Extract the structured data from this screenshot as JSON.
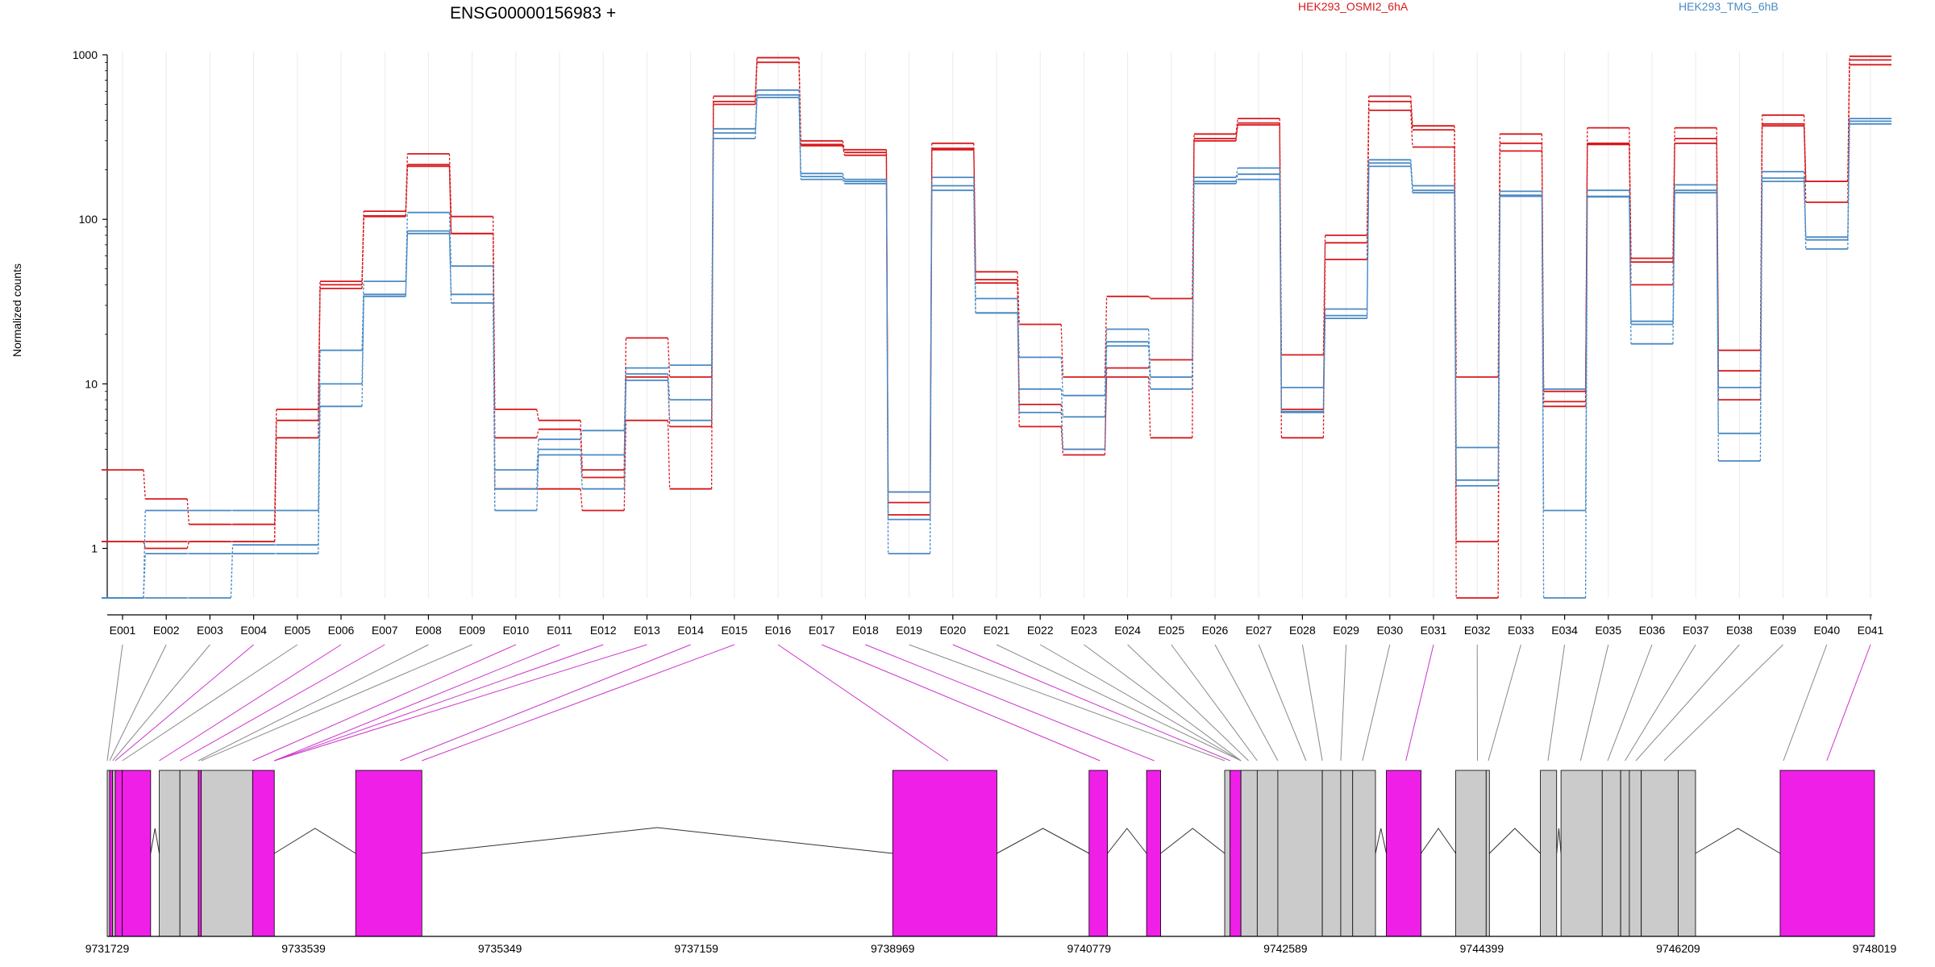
{
  "chart_data": {
    "type": "line",
    "title": "ENSG00000156983 +",
    "ylabel": "Normalized counts",
    "xlabel": "",
    "y_scale": "log",
    "ylim": [
      0.5,
      1000
    ],
    "y_ticks": [
      {
        "value": 1,
        "label": "1"
      },
      {
        "value": 10,
        "label": "10"
      },
      {
        "value": 100,
        "label": "100"
      },
      {
        "value": 1000,
        "label": "1000"
      }
    ],
    "categories": [
      "E001",
      "E002",
      "E003",
      "E004",
      "E005",
      "E006",
      "E007",
      "E008",
      "E009",
      "E010",
      "E011",
      "E012",
      "E013",
      "E014",
      "E015",
      "E016",
      "E017",
      "E018",
      "E019",
      "E020",
      "E021",
      "E022",
      "E023",
      "E024",
      "E025",
      "E026",
      "E027",
      "E028",
      "E029",
      "E030",
      "E031",
      "E032",
      "E033",
      "E034",
      "E035",
      "E036",
      "E037",
      "E038",
      "E039",
      "E040",
      "E041"
    ],
    "series": [
      {
        "name": "HEK293_OSMI2_6hA",
        "group": "HEK293_OSMI2_6hA",
        "color": "#d7191c",
        "values": [
          3,
          2,
          1.4,
          1.4,
          7,
          42,
          112,
          250,
          104,
          7,
          6,
          3,
          19,
          11,
          560,
          960,
          300,
          265,
          2.2,
          290,
          48,
          23,
          11,
          34,
          33,
          330,
          410,
          15,
          80,
          560,
          370,
          11,
          330,
          9,
          360,
          58,
          360,
          16,
          430,
          170,
          980
        ]
      },
      {
        "name": "",
        "group": "HEK293_OSMI2_6hA",
        "color": "#d7191c",
        "values": [
          1.1,
          1.1,
          1.1,
          1.1,
          6,
          38,
          105,
          215,
          82,
          4.7,
          5.3,
          2.7,
          11,
          5.5,
          520,
          960,
          285,
          255,
          1.9,
          265,
          41,
          5.5,
          3.7,
          12.5,
          14,
          310,
          385,
          7,
          57,
          460,
          275,
          0.5,
          290,
          7.3,
          290,
          40,
          290,
          8,
          380,
          127,
          930
        ]
      },
      {
        "name": "",
        "group": "HEK293_OSMI2_6hA",
        "color": "#d7191c",
        "values": [
          1.1,
          1,
          1.1,
          1.1,
          4.7,
          40,
          104,
          210,
          82,
          2.3,
          2.3,
          1.7,
          6,
          2.3,
          500,
          900,
          280,
          245,
          1.6,
          270,
          43,
          7.5,
          4,
          11,
          4.7,
          300,
          375,
          4.7,
          72,
          520,
          350,
          1.1,
          260,
          7.8,
          285,
          55,
          310,
          12,
          370,
          170,
          870
        ]
      },
      {
        "name": "HEK293_TMG_6hB",
        "group": "HEK293_TMG_6hB",
        "color": "#4a8ac4",
        "values": [
          0.5,
          1.7,
          1.7,
          1.7,
          1.7,
          16,
          42,
          110,
          52,
          3,
          4.6,
          5.2,
          12.5,
          13,
          355,
          610,
          190,
          175,
          2.2,
          180,
          33,
          14.5,
          8.5,
          21.5,
          11,
          180,
          205,
          9.5,
          28.5,
          230,
          160,
          4.1,
          148,
          9.3,
          150,
          24,
          162,
          9.5,
          195,
          78,
          410
        ]
      },
      {
        "name": "",
        "group": "HEK293_TMG_6hB",
        "color": "#4a8ac4",
        "values": [
          0.5,
          0.5,
          0.5,
          1.05,
          1.05,
          10,
          35,
          85,
          35,
          2.3,
          4,
          3.7,
          11.5,
          8,
          335,
          570,
          182,
          170,
          1.5,
          160,
          27,
          9.3,
          6.3,
          18,
          11,
          170,
          188,
          6.7,
          25,
          220,
          150,
          2.6,
          140,
          1.7,
          138,
          23,
          150,
          5,
          178,
          75,
          395
        ]
      },
      {
        "name": "",
        "group": "HEK293_TMG_6hB",
        "color": "#4a8ac4",
        "values": [
          0.5,
          0.93,
          0.93,
          0.93,
          0.93,
          7.3,
          34,
          82,
          31,
          1.7,
          3.7,
          2.3,
          10.5,
          6,
          310,
          550,
          175,
          165,
          0.93,
          150,
          27,
          6.7,
          4,
          17,
          9.3,
          165,
          175,
          6.8,
          26,
          210,
          145,
          2.4,
          138,
          0.5,
          137,
          17.5,
          145,
          3.4,
          170,
          66,
          380
        ]
      }
    ],
    "legend": {
      "placement": "top-right",
      "entries": [
        "HEK293_OSMI2_6hA",
        "HEK293_TMG_6hB"
      ]
    },
    "grid": true,
    "gene_model": {
      "coordinate_start": 9731729,
      "coordinate_end": 9748019,
      "axis_ticks": [
        "9731729",
        "9733539",
        "9735349",
        "9737159",
        "9738969",
        "9740779",
        "9742589",
        "9744399",
        "9746209",
        "9748019"
      ],
      "exons": [
        {
          "start": 9731729,
          "end": 9731751,
          "type": "ns"
        },
        {
          "start": 9731751,
          "end": 9731779,
          "type": "s"
        },
        {
          "start": 9731779,
          "end": 9731803,
          "type": "ns"
        },
        {
          "start": 9731803,
          "end": 9731868,
          "type": "s"
        },
        {
          "start": 9731868,
          "end": 9732129,
          "type": "s"
        },
        {
          "start": 9732209,
          "end": 9732399,
          "type": "ns"
        },
        {
          "start": 9732399,
          "end": 9732569,
          "type": "ns"
        },
        {
          "start": 9732569,
          "end": 9732596,
          "type": "s"
        },
        {
          "start": 9732596,
          "end": 9733069,
          "type": "ns"
        },
        {
          "start": 9733069,
          "end": 9733269,
          "type": "s"
        },
        {
          "start": 9734019,
          "end": 9734629,
          "type": "s"
        },
        {
          "start": 9738969,
          "end": 9739929,
          "type": "s"
        },
        {
          "start": 9740779,
          "end": 9740949,
          "type": "s"
        },
        {
          "start": 9741309,
          "end": 9741439,
          "type": "s"
        },
        {
          "start": 9742029,
          "end": 9742079,
          "type": "ns"
        },
        {
          "start": 9742079,
          "end": 9742179,
          "type": "s"
        },
        {
          "start": 9742179,
          "end": 9742329,
          "type": "ns"
        },
        {
          "start": 9742329,
          "end": 9742519,
          "type": "ns"
        },
        {
          "start": 9742519,
          "end": 9742929,
          "type": "ns"
        },
        {
          "start": 9742929,
          "end": 9743099,
          "type": "ns"
        },
        {
          "start": 9743099,
          "end": 9743209,
          "type": "ns"
        },
        {
          "start": 9743209,
          "end": 9743419,
          "type": "ns"
        },
        {
          "start": 9743519,
          "end": 9743839,
          "type": "s"
        },
        {
          "start": 9744159,
          "end": 9744439,
          "type": "ns"
        },
        {
          "start": 9744439,
          "end": 9744469,
          "type": "ns"
        },
        {
          "start": 9744939,
          "end": 9745089,
          "type": "ns"
        },
        {
          "start": 9745129,
          "end": 9745509,
          "type": "ns"
        },
        {
          "start": 9745509,
          "end": 9745679,
          "type": "ns"
        },
        {
          "start": 9745679,
          "end": 9745759,
          "type": "ns"
        },
        {
          "start": 9745759,
          "end": 9745869,
          "type": "ns"
        },
        {
          "start": 9745869,
          "end": 9746209,
          "type": "ns"
        },
        {
          "start": 9746209,
          "end": 9746369,
          "type": "ns"
        },
        {
          "start": 9747149,
          "end": 9748019,
          "type": "s"
        }
      ],
      "connectors": [
        {
          "exon": "E001",
          "coord": 9731729,
          "color": "#888888"
        },
        {
          "exon": "E002",
          "coord": 9731751,
          "color": "#888888"
        },
        {
          "exon": "E003",
          "coord": 9731779,
          "color": "#888888"
        },
        {
          "exon": "E004",
          "coord": 9731803,
          "color": "#cc33cc"
        },
        {
          "exon": "E005",
          "coord": 9731868,
          "color": "#888888"
        },
        {
          "exon": "E006",
          "coord": 9732209,
          "color": "#cc33cc"
        },
        {
          "exon": "E007",
          "coord": 9732399,
          "color": "#cc33cc"
        },
        {
          "exon": "E008",
          "coord": 9732569,
          "color": "#888888"
        },
        {
          "exon": "E009",
          "coord": 9732596,
          "color": "#888888"
        },
        {
          "exon": "E010",
          "coord": 9733069,
          "color": "#cc33cc"
        },
        {
          "exon": "E011",
          "coord": 9733269,
          "color": "#cc33cc"
        },
        {
          "exon": "E012",
          "coord": 9733269,
          "color": "#cc33cc"
        },
        {
          "exon": "E013",
          "coord": 9733269,
          "color": "#cc33cc"
        },
        {
          "exon": "E014",
          "coord": 9734429,
          "color": "#cc33cc"
        },
        {
          "exon": "E015",
          "coord": 9734629,
          "color": "#cc33cc"
        },
        {
          "exon": "E016",
          "coord": 9739479,
          "color": "#cc33cc"
        },
        {
          "exon": "E017",
          "coord": 9740879,
          "color": "#cc33cc"
        },
        {
          "exon": "E018",
          "coord": 9741379,
          "color": "#cc33cc"
        },
        {
          "exon": "E019",
          "coord": 9742029,
          "color": "#888888"
        },
        {
          "exon": "E020",
          "coord": 9742079,
          "color": "#cc33cc"
        },
        {
          "exon": "E021",
          "coord": 9742179,
          "color": "#888888"
        },
        {
          "exon": "E022",
          "coord": 9742179,
          "color": "#888888"
        },
        {
          "exon": "E023",
          "coord": 9742179,
          "color": "#888888"
        },
        {
          "exon": "E024",
          "coord": 9742249,
          "color": "#888888"
        },
        {
          "exon": "E025",
          "coord": 9742329,
          "color": "#888888"
        },
        {
          "exon": "E026",
          "coord": 9742519,
          "color": "#888888"
        },
        {
          "exon": "E027",
          "coord": 9742779,
          "color": "#888888"
        },
        {
          "exon": "E028",
          "coord": 9742929,
          "color": "#888888"
        },
        {
          "exon": "E029",
          "coord": 9743099,
          "color": "#888888"
        },
        {
          "exon": "E030",
          "coord": 9743299,
          "color": "#888888"
        },
        {
          "exon": "E031",
          "coord": 9743699,
          "color": "#cc33cc"
        },
        {
          "exon": "E032",
          "coord": 9744359,
          "color": "#888888"
        },
        {
          "exon": "E033",
          "coord": 9744459,
          "color": "#888888"
        },
        {
          "exon": "E034",
          "coord": 9745009,
          "color": "#888888"
        },
        {
          "exon": "E035",
          "coord": 9745309,
          "color": "#888888"
        },
        {
          "exon": "E036",
          "coord": 9745559,
          "color": "#888888"
        },
        {
          "exon": "E037",
          "coord": 9745719,
          "color": "#888888"
        },
        {
          "exon": "E038",
          "coord": 9745819,
          "color": "#888888"
        },
        {
          "exon": "E039",
          "coord": 9746079,
          "color": "#888888"
        },
        {
          "exon": "E040",
          "coord": 9747179,
          "color": "#888888"
        },
        {
          "exon": "E041",
          "coord": 9747579,
          "color": "#cc33cc"
        }
      ]
    }
  }
}
